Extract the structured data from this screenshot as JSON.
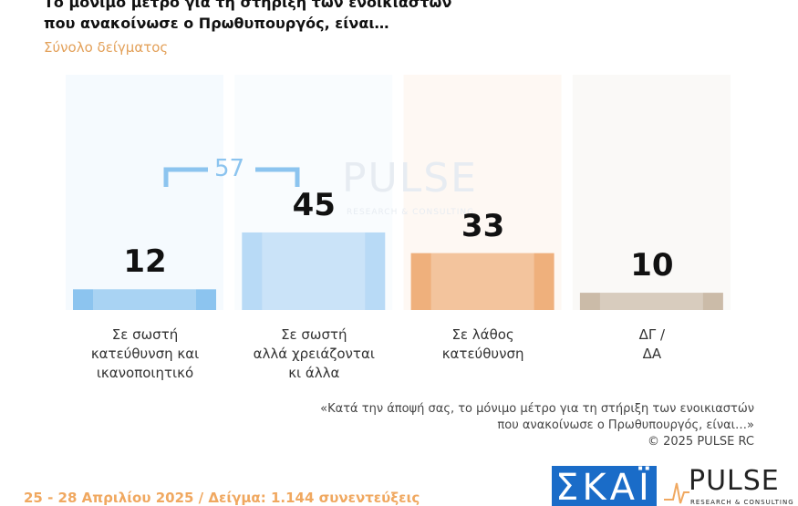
{
  "chart_data": {
    "type": "bar",
    "title": "Το μόνιμο μέτρο για τη στήριξη των ενοικιαστών\nπου ανακοίνωσε ο Πρωθυπουργός, είναι…",
    "subtitle": "Σύνολο δείγματος",
    "categories": [
      "Σε σωστή\nκατεύθυνση και\nικανοποιητικό",
      "Σε σωστή\nαλλά χρειάζονται\nκι άλλα",
      "Σε λάθος\nκατεύθυνση",
      "ΔΓ /\nΔΑ"
    ],
    "values": [
      12,
      45,
      33,
      10
    ],
    "colors": [
      "#8cc4ef",
      "#b8daf6",
      "#efb07c",
      "#cbbba8"
    ],
    "bracket_value": 57,
    "note": "«Κατά την άποψή σας, το μόνιμο μέτρο για τη στήριξη των ενοικιαστών\nπου ανακοίνωσε ο Πρωθυπουργός, είναι…»",
    "copyright": "©  2025  PULSE RC",
    "footer": "25 - 28 Απριλίου 2025  /  Δείγμα:  1.144 συνεντεύξεις",
    "logo_skai": "ΣΚΑΪ",
    "logo_pulse": "PULSE",
    "logo_pulse_sub": "RESEARCH & CONSULTING"
  }
}
